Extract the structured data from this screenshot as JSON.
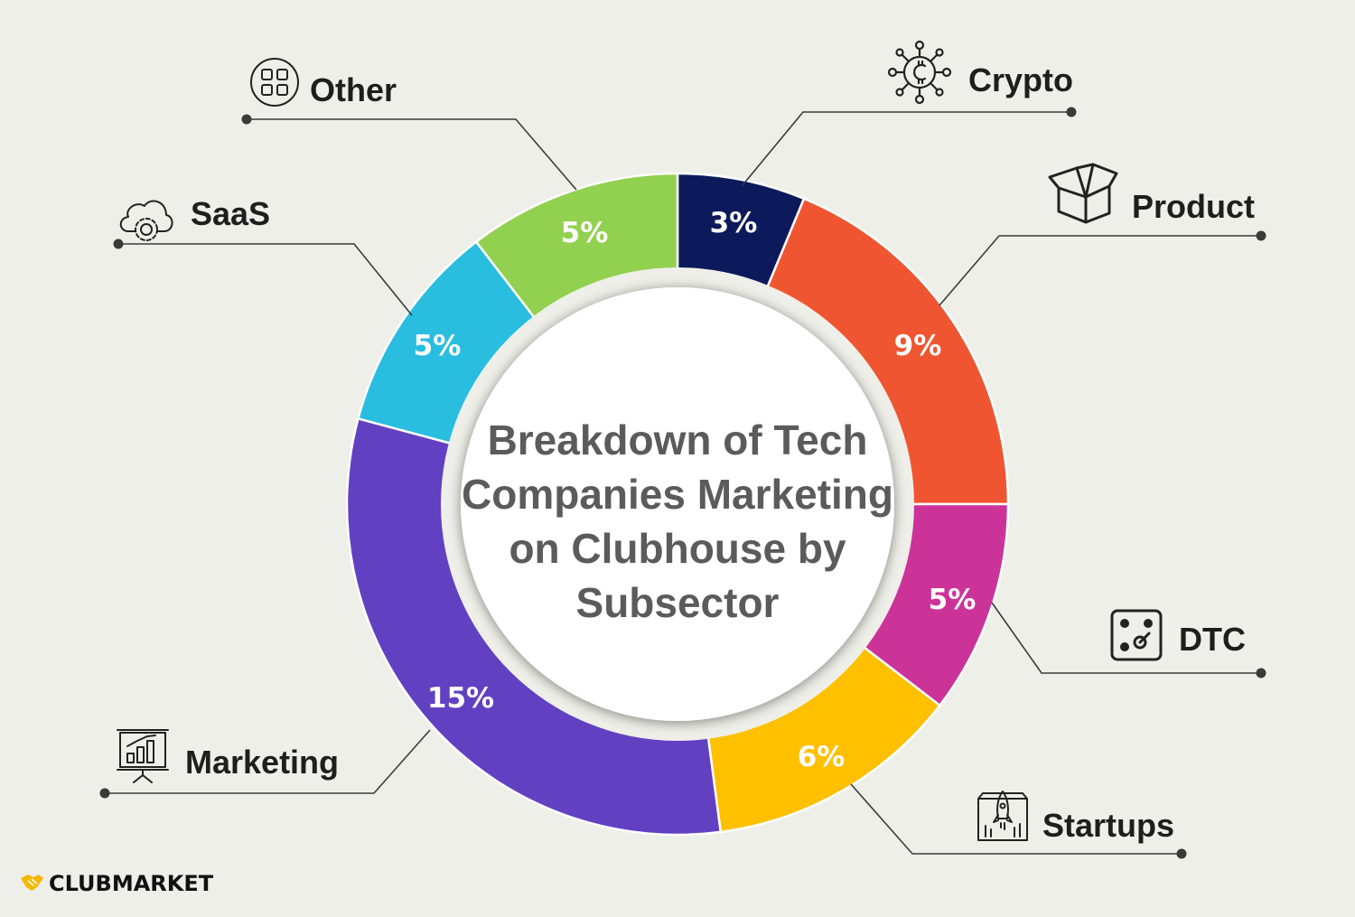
{
  "chart_data": {
    "type": "pie",
    "style": "donut",
    "title_lines": [
      "Breakdown of Tech",
      "Companies Marketing",
      "on Clubhouse by",
      "Subsector"
    ],
    "slices": [
      {
        "label": "Crypto",
        "value": 3,
        "value_label": "3%",
        "color": "#0c1a5b",
        "icon": "crypto-coin-network-icon"
      },
      {
        "label": "Product",
        "value": 9,
        "value_label": "9%",
        "color": "#f05532",
        "icon": "open-box-icon"
      },
      {
        "label": "DTC",
        "value": 5,
        "value_label": "5%",
        "color": "#cc3399",
        "icon": "target-dice-icon"
      },
      {
        "label": "Startups",
        "value": 6,
        "value_label": "6%",
        "color": "#ffc000",
        "icon": "rocket-launch-icon"
      },
      {
        "label": "Marketing",
        "value": 15,
        "value_label": "15%",
        "color": "#6240c2",
        "icon": "presentation-board-icon"
      },
      {
        "label": "SaaS",
        "value": 5,
        "value_label": "5%",
        "color": "#29bde0",
        "icon": "cloud-gear-icon"
      },
      {
        "label": "Other",
        "value": 5,
        "value_label": "5%",
        "color": "#92d050",
        "icon": "grid-apps-icon"
      }
    ]
  },
  "brand": {
    "name": "CLUBMARKET",
    "icon": "handshake-icon",
    "color": "#f5b800"
  },
  "background_color": "#efefe9"
}
